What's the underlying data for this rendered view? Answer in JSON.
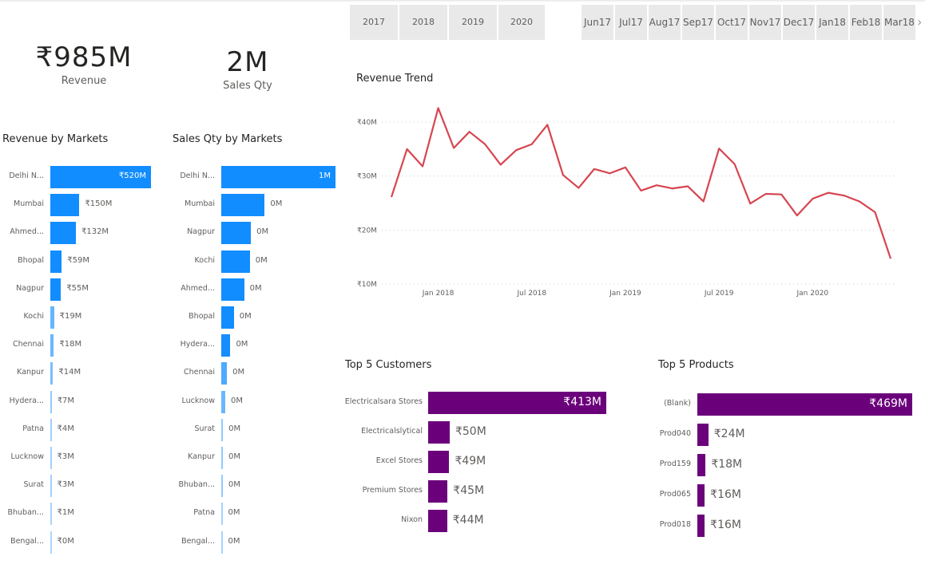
{
  "year_slicer": [
    "2017",
    "2018",
    "2019",
    "2020"
  ],
  "month_slicer": [
    [
      "Jun",
      "17"
    ],
    [
      "Jul",
      "17"
    ],
    [
      "Aug",
      "17"
    ],
    [
      "Sep",
      "17"
    ],
    [
      "Oct",
      "17"
    ],
    [
      "Nov",
      "17"
    ],
    [
      "Dec",
      "17"
    ],
    [
      "Jan",
      "18"
    ],
    [
      "Feb",
      "18"
    ],
    [
      "Mar",
      "18"
    ]
  ],
  "slicer_next_icon": "chevron-right-icon",
  "kpis": {
    "revenue": {
      "value": "₹985M",
      "label": "Revenue"
    },
    "sales_qty": {
      "value": "2M",
      "label": "Sales Qty"
    }
  },
  "colors": {
    "bar_blue": "#118DFF",
    "line_red": "#D64550",
    "bar_purple": "#6B007B"
  },
  "chart_data": [
    {
      "type": "bar",
      "orientation": "horizontal",
      "title": "Revenue by Markets",
      "categories": [
        "Delhi N...",
        "Mumbai",
        "Ahmed...",
        "Bhopal",
        "Nagpur",
        "Kochi",
        "Chennai",
        "Kanpur",
        "Hydera...",
        "Patna",
        "Lucknow",
        "Surat",
        "Bhuban...",
        "Bengal..."
      ],
      "values": [
        520,
        150,
        132,
        59,
        55,
        19,
        18,
        14,
        7,
        4,
        3,
        3,
        1,
        0
      ],
      "labels": [
        "₹520M",
        "₹150M",
        "₹132M",
        "₹59M",
        "₹55M",
        "₹19M",
        "₹18M",
        "₹14M",
        "₹7M",
        "₹4M",
        "₹3M",
        "₹3M",
        "₹1M",
        "₹0M"
      ],
      "unit": "₹M"
    },
    {
      "type": "bar",
      "orientation": "horizontal",
      "title": "Sales Qty by Markets",
      "categories": [
        "Delhi N...",
        "Mumbai",
        "Nagpur",
        "Kochi",
        "Ahmed...",
        "Bhopal",
        "Hydera...",
        "Chennai",
        "Lucknow",
        "Surat",
        "Kanpur",
        "Bhuban...",
        "Patna",
        "Bengal..."
      ],
      "values": [
        1.0,
        0.38,
        0.26,
        0.25,
        0.2,
        0.11,
        0.08,
        0.05,
        0.035,
        0.015,
        0.014,
        0.013,
        0.006,
        0.004
      ],
      "labels": [
        "1M",
        "0M",
        "0M",
        "0M",
        "0M",
        "0M",
        "0M",
        "0M",
        "0M",
        "0M",
        "0M",
        "0M",
        "0M",
        "0M"
      ],
      "unit": "M"
    },
    {
      "type": "line",
      "title": "Revenue Trend",
      "x": [
        "2017-10",
        "2017-11",
        "2017-12",
        "2018-01",
        "2018-02",
        "2018-03",
        "2018-04",
        "2018-05",
        "2018-06",
        "2018-07",
        "2018-08",
        "2018-09",
        "2018-10",
        "2018-11",
        "2018-12",
        "2019-01",
        "2019-02",
        "2019-03",
        "2019-04",
        "2019-05",
        "2019-06",
        "2019-07",
        "2019-08",
        "2019-09",
        "2019-10",
        "2019-11",
        "2019-12",
        "2020-01",
        "2020-02",
        "2020-03",
        "2020-04",
        "2020-05",
        "2020-06"
      ],
      "values": [
        26.1,
        35.0,
        31.8,
        42.6,
        35.2,
        38.2,
        35.9,
        32.1,
        34.8,
        35.9,
        39.5,
        30.2,
        27.8,
        31.3,
        30.5,
        31.6,
        27.3,
        28.3,
        27.7,
        28.1,
        25.3,
        35.1,
        32.2,
        24.9,
        26.7,
        26.6,
        22.7,
        25.8,
        26.9,
        26.4,
        25.3,
        23.3,
        14.7
      ],
      "x_ticks": [
        {
          "x": "2018-01",
          "label": "Jan 2018"
        },
        {
          "x": "2018-07",
          "label": "Jul 2018"
        },
        {
          "x": "2019-01",
          "label": "Jan 2019"
        },
        {
          "x": "2019-07",
          "label": "Jul 2019"
        },
        {
          "x": "2020-01",
          "label": "Jan 2020"
        }
      ],
      "y_ticks": [
        {
          "y": 10,
          "label": "₹10M"
        },
        {
          "y": 20,
          "label": "₹20M"
        },
        {
          "y": 30,
          "label": "₹30M"
        },
        {
          "y": 40,
          "label": "₹40M"
        }
      ],
      "ylim": [
        10,
        40
      ],
      "grid": "horizontal-dotted",
      "unit": "₹M"
    },
    {
      "type": "bar",
      "orientation": "horizontal",
      "title": "Top 5 Customers",
      "categories": [
        "Electricalsara Stores",
        "Electricalslytical",
        "Excel Stores",
        "Premium Stores",
        "Nixon"
      ],
      "values": [
        413,
        50,
        49,
        45,
        44
      ],
      "labels": [
        "₹413M",
        "₹50M",
        "₹49M",
        "₹45M",
        "₹44M"
      ],
      "unit": "₹M"
    },
    {
      "type": "bar",
      "orientation": "horizontal",
      "title": "Top 5 Products",
      "categories": [
        "(Blank)",
        "Prod040",
        "Prod159",
        "Prod065",
        "Prod018"
      ],
      "values": [
        469,
        24,
        18,
        16,
        16
      ],
      "labels": [
        "₹469M",
        "₹24M",
        "₹18M",
        "₹16M",
        "₹16M"
      ],
      "unit": "₹M"
    }
  ]
}
